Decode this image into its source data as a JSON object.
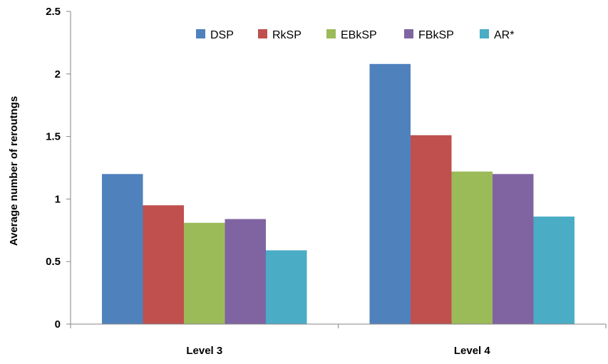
{
  "chart_data": {
    "type": "bar",
    "title": "",
    "xlabel": "",
    "ylabel": "Average number of reroutngs",
    "ylim": [
      0,
      2.5
    ],
    "yticks": [
      "0",
      "0.5",
      "1",
      "1.5",
      "2",
      "2.5"
    ],
    "grid": false,
    "legend_position": "top-right",
    "categories": [
      "Level 3",
      "Level 4"
    ],
    "series": [
      {
        "name": "DSP",
        "color": "#4f81bd",
        "values": [
          1.2,
          2.08
        ]
      },
      {
        "name": "RkSP",
        "color": "#c0504d",
        "values": [
          0.95,
          1.51
        ]
      },
      {
        "name": "EBkSP",
        "color": "#9bbb59",
        "values": [
          0.81,
          1.22
        ]
      },
      {
        "name": "FBkSP",
        "color": "#8064a2",
        "values": [
          0.84,
          1.2
        ]
      },
      {
        "name": "AR*",
        "color": "#4bacc6",
        "values": [
          0.59,
          0.86
        ]
      }
    ]
  }
}
